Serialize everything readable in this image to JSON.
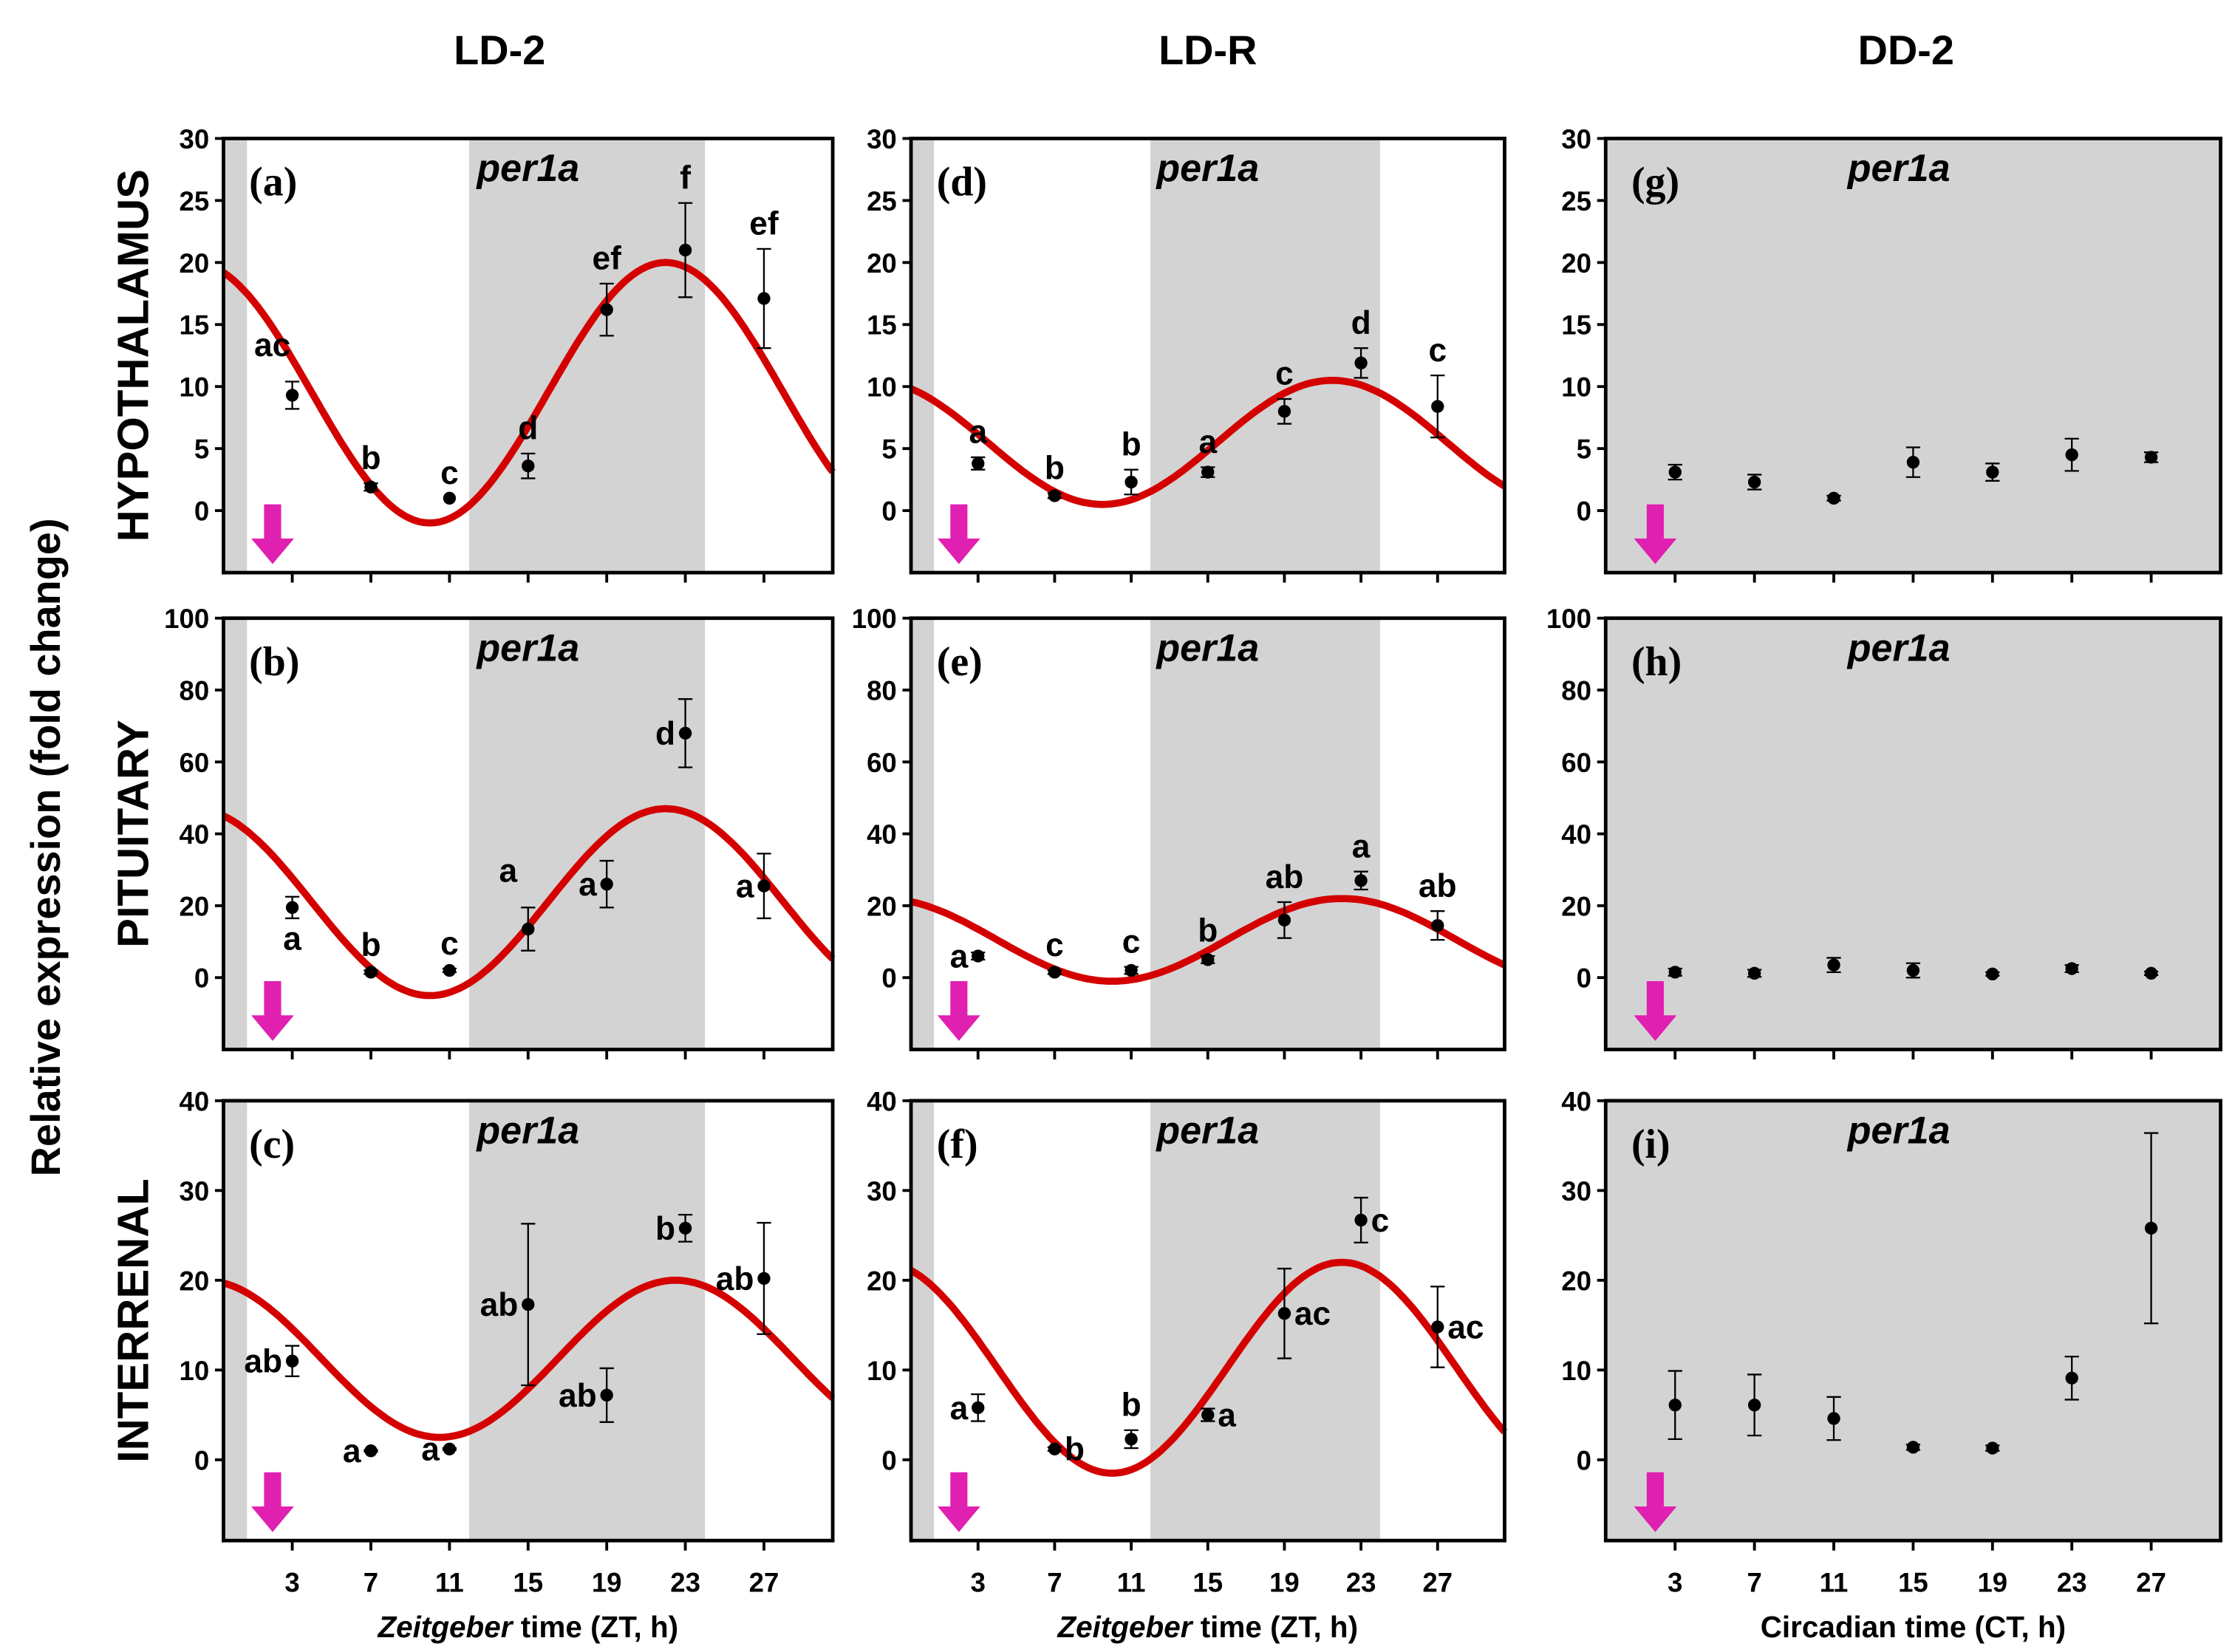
{
  "chart_data": {
    "type": "scatter",
    "ylabel": "Relative expression (fold change)",
    "columns": [
      "LD-2",
      "LD-R",
      "DD-2"
    ],
    "rows": [
      "HYPOTHALAMUS",
      "PITUITARY",
      "INTERRENAL"
    ],
    "xlabels": [
      {
        "italic": "Zeitgeber",
        "rest": " time (ZT, h)"
      },
      {
        "italic": "Zeitgeber",
        "rest": " time (ZT, h)"
      },
      {
        "italic": "",
        "rest": "Circadian time (CT, h)"
      }
    ],
    "x_ticks": [
      "3",
      "7",
      "11",
      "15",
      "19",
      "23",
      "27"
    ],
    "xlim": [
      -0.5,
      30.5
    ],
    "colors": {
      "curve": "#d40000",
      "night": "#d3d3d3",
      "arrow": "#e020b0",
      "point": "#000000"
    },
    "row_axes": [
      {
        "ylim": [
          -5,
          30
        ],
        "ticks": [
          "0",
          "5",
          "10",
          "15",
          "20",
          "25",
          "30"
        ],
        "tick_values": [
          0,
          5,
          10,
          15,
          20,
          25,
          30
        ]
      },
      {
        "ylim": [
          -20,
          100
        ],
        "ticks": [
          "0",
          "20",
          "40",
          "60",
          "80",
          "100"
        ],
        "tick_values": [
          0,
          20,
          40,
          60,
          80,
          100
        ]
      },
      {
        "ylim": [
          -9,
          40
        ],
        "ticks": [
          "0",
          "10",
          "20",
          "30",
          "40"
        ],
        "tick_values": [
          0,
          10,
          20,
          30,
          40
        ]
      }
    ],
    "panels": [
      {
        "id": "(a)",
        "gene": "per1a",
        "row": 0,
        "col": 0,
        "night": [
          [
            12,
            24
          ]
        ],
        "early_dark_until": 0.7,
        "cosinor": {
          "mesor": 9.5,
          "amplitude": 10.5,
          "acrophase": 22
        },
        "x": [
          3,
          7,
          11,
          15,
          19,
          23,
          27
        ],
        "y": [
          9.3,
          1.9,
          1.0,
          3.6,
          16.2,
          21.0,
          17.1
        ],
        "err": [
          1.1,
          0.3,
          0,
          1.0,
          2.1,
          3.8,
          4.0
        ],
        "groups": [
          "ac",
          "b",
          "c",
          "d",
          "ef",
          "f",
          "ef"
        ],
        "group_pos": [
          "aboveleft",
          "above",
          "above",
          "above",
          "above",
          "above",
          "above"
        ]
      },
      {
        "id": "(b)",
        "gene": "per1a",
        "row": 1,
        "col": 0,
        "night": [
          [
            12,
            24
          ]
        ],
        "early_dark_until": 0.7,
        "cosinor": {
          "mesor": 21,
          "amplitude": 26,
          "acrophase": 22
        },
        "x": [
          3,
          7,
          11,
          15,
          19,
          23,
          27
        ],
        "y": [
          19.5,
          1.5,
          2.0,
          13.5,
          26,
          68,
          25.5
        ],
        "err": [
          3,
          0.5,
          0.5,
          6,
          6.5,
          9.5,
          9
        ],
        "groups": [
          "a",
          "b",
          "c",
          "a",
          "a",
          "d",
          "a"
        ],
        "group_pos": [
          "below",
          "above",
          "above",
          "aboveleft",
          "left",
          "left",
          "left"
        ]
      },
      {
        "id": "(c)",
        "gene": "per1a",
        "row": 2,
        "col": 0,
        "night": [
          [
            12,
            24
          ]
        ],
        "early_dark_until": 0.7,
        "cosinor": {
          "mesor": 11.25,
          "amplitude": 8.75,
          "acrophase": 22.5
        },
        "x": [
          3,
          7,
          11,
          15,
          19,
          23,
          27
        ],
        "y": [
          11.0,
          1.0,
          1.2,
          17.3,
          7.2,
          25.8,
          20.2
        ],
        "err": [
          1.7,
          0.1,
          0.1,
          9.0,
          3.0,
          1.5,
          6.2
        ],
        "groups": [
          "ab",
          "a",
          "a",
          "ab",
          "ab",
          "b",
          "ab"
        ],
        "group_pos": [
          "left",
          "left",
          "left",
          "left",
          "left",
          "left",
          "left"
        ]
      },
      {
        "id": "(d)",
        "gene": "per1a",
        "row": 0,
        "col": 1,
        "night": [
          [
            12,
            24
          ]
        ],
        "early_dark_until": 0.7,
        "cosinor": {
          "mesor": 5.5,
          "amplitude": 5,
          "acrophase": 21.5
        },
        "x": [
          3,
          7,
          11,
          15,
          19,
          23,
          27
        ],
        "y": [
          3.8,
          1.2,
          2.3,
          3.1,
          8.0,
          11.9,
          8.4
        ],
        "err": [
          0.5,
          0.2,
          1.0,
          0.4,
          1.0,
          1.2,
          2.5
        ],
        "groups": [
          "a",
          "b",
          "b",
          "a",
          "c",
          "d",
          "c"
        ],
        "group_pos": [
          "above",
          "above",
          "above",
          "above",
          "above",
          "above",
          "above"
        ]
      },
      {
        "id": "(e)",
        "gene": "per1a",
        "row": 1,
        "col": 1,
        "night": [
          [
            12,
            24
          ]
        ],
        "early_dark_until": 0.7,
        "cosinor": {
          "mesor": 10.5,
          "amplitude": 11.5,
          "acrophase": 22
        },
        "x": [
          3,
          7,
          11,
          15,
          19,
          23,
          27
        ],
        "y": [
          6,
          1.5,
          2,
          5,
          16,
          27,
          14.5
        ],
        "err": [
          1,
          0.5,
          1,
          1,
          5,
          2.5,
          4
        ],
        "groups": [
          "a",
          "c",
          "c",
          "b",
          "ab",
          "a",
          "ab"
        ],
        "group_pos": [
          "left",
          "above",
          "above",
          "above",
          "above",
          "above",
          "above"
        ]
      },
      {
        "id": "(f)",
        "gene": "per1a",
        "row": 2,
        "col": 1,
        "night": [
          [
            12,
            24
          ]
        ],
        "early_dark_until": 0.7,
        "cosinor": {
          "mesor": 10.25,
          "amplitude": 11.75,
          "acrophase": 22
        },
        "x": [
          3,
          7,
          11,
          15,
          19,
          23,
          27
        ],
        "y": [
          5.8,
          1.2,
          2.3,
          5.0,
          16.3,
          26.7,
          14.8
        ],
        "err": [
          1.5,
          0.2,
          1.0,
          0.7,
          5.0,
          2.5,
          4.5
        ],
        "groups": [
          "a",
          "b",
          "b",
          "a",
          "ac",
          "c",
          "ac"
        ],
        "group_pos": [
          "left",
          "right",
          "above",
          "right",
          "right",
          "right",
          "right"
        ]
      },
      {
        "id": "(g)",
        "gene": "per1a",
        "row": 0,
        "col": 2,
        "night": [
          [
            -0.5,
            30.5
          ]
        ],
        "early_dark_until": 0,
        "x": [
          3,
          7,
          11,
          15,
          19,
          23,
          27
        ],
        "y": [
          3.1,
          2.3,
          1.0,
          3.9,
          3.1,
          4.5,
          4.3
        ],
        "err": [
          0.6,
          0.6,
          0.2,
          1.2,
          0.7,
          1.3,
          0.4
        ],
        "groups": [],
        "group_pos": []
      },
      {
        "id": "(h)",
        "gene": "per1a",
        "row": 1,
        "col": 2,
        "night": [
          [
            -0.5,
            30.5
          ]
        ],
        "early_dark_until": 0,
        "x": [
          3,
          7,
          11,
          15,
          19,
          23,
          27
        ],
        "y": [
          1.5,
          1.2,
          3.5,
          2.0,
          1.0,
          2.5,
          1.2
        ],
        "err": [
          1,
          1,
          2,
          2,
          0.5,
          1,
          0.5
        ],
        "groups": [],
        "group_pos": []
      },
      {
        "id": "(i)",
        "gene": "per1a",
        "row": 2,
        "col": 2,
        "night": [
          [
            -0.5,
            30.5
          ]
        ],
        "early_dark_until": 0,
        "x": [
          3,
          7,
          11,
          15,
          19,
          23,
          27
        ],
        "y": [
          6.1,
          6.1,
          4.6,
          1.4,
          1.3,
          9.1,
          25.8
        ],
        "err": [
          3.8,
          3.4,
          2.4,
          0.3,
          0.3,
          2.4,
          10.6
        ],
        "groups": [],
        "group_pos": []
      }
    ],
    "arrow_x": 2
  }
}
